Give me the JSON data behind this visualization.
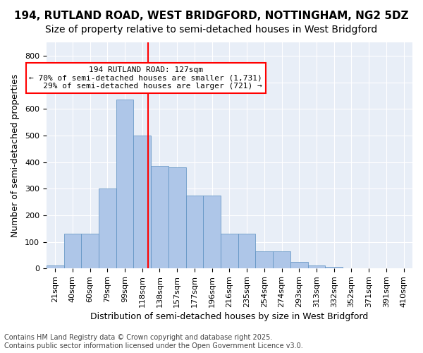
{
  "title1": "194, RUTLAND ROAD, WEST BRIDGFORD, NOTTINGHAM, NG2 5DZ",
  "title2": "Size of property relative to semi-detached houses in West Bridgford",
  "xlabel": "Distribution of semi-detached houses by size in West Bridgford",
  "ylabel": "Number of semi-detached properties",
  "bin_labels": [
    "21sqm",
    "40sqm",
    "60sqm",
    "79sqm",
    "99sqm",
    "118sqm",
    "138sqm",
    "157sqm",
    "177sqm",
    "196sqm",
    "216sqm",
    "235sqm",
    "254sqm",
    "274sqm",
    "293sqm",
    "313sqm",
    "332sqm",
    "352sqm",
    "371sqm",
    "391sqm",
    "410sqm"
  ],
  "bar_heights": [
    10,
    130,
    130,
    300,
    635,
    500,
    385,
    380,
    275,
    275,
    130,
    130,
    65,
    65,
    25,
    10,
    5,
    0,
    0,
    0,
    0
  ],
  "bar_color": "#aec6e8",
  "bar_edge_color": "#5a8fc0",
  "vline_x_index": 5.35,
  "annotation_text": "194 RUTLAND ROAD: 127sqm\n← 70% of semi-detached houses are smaller (1,731)\n   29% of semi-detached houses are larger (721) →",
  "annotation_box_color": "white",
  "annotation_box_edge_color": "red",
  "vline_color": "red",
  "ylim": [
    0,
    850
  ],
  "yticks": [
    0,
    100,
    200,
    300,
    400,
    500,
    600,
    700,
    800
  ],
  "background_color": "#e8eef7",
  "grid_color": "white",
  "footer": "Contains HM Land Registry data © Crown copyright and database right 2025.\nContains public sector information licensed under the Open Government Licence v3.0.",
  "title1_fontsize": 11,
  "title2_fontsize": 10,
  "xlabel_fontsize": 9,
  "ylabel_fontsize": 9,
  "tick_fontsize": 8,
  "annotation_fontsize": 8,
  "footer_fontsize": 7
}
